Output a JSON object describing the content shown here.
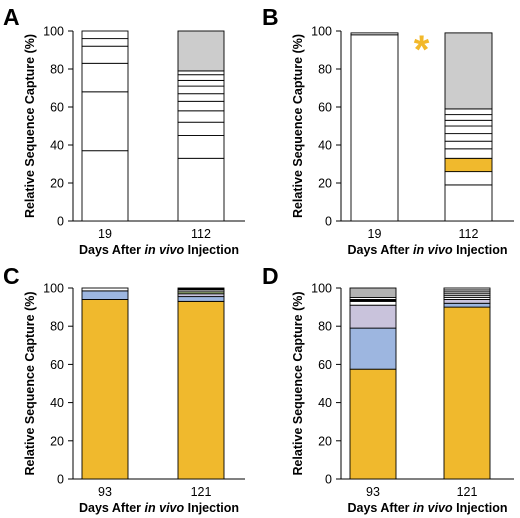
{
  "chart_data": [
    {
      "panel_letter": "A",
      "type": "bar",
      "stacked": true,
      "ylabel": "Relative Sequence Capture (%)",
      "xlabel_parts": [
        "Days After ",
        "in vivo",
        " Injection"
      ],
      "ylim": [
        0,
        100
      ],
      "yticks": [
        0,
        20,
        40,
        60,
        80,
        100
      ],
      "categories": [
        "19",
        "112"
      ],
      "stacks": [
        [
          {
            "value": 37,
            "color": "#ffffff"
          },
          {
            "value": 31,
            "color": "#ffffff"
          },
          {
            "value": 15,
            "color": "#ffffff"
          },
          {
            "value": 9,
            "color": "#ffffff"
          },
          {
            "value": 4,
            "color": "#ffffff"
          },
          {
            "value": 4,
            "color": "#ffffff"
          }
        ],
        [
          {
            "value": 33,
            "color": "#ffffff"
          },
          {
            "value": 12,
            "color": "#ffffff"
          },
          {
            "value": 7,
            "color": "#ffffff"
          },
          {
            "value": 6,
            "color": "#ffffff"
          },
          {
            "value": 5,
            "color": "#ffffff"
          },
          {
            "value": 4,
            "color": "#ffffff"
          },
          {
            "value": 4,
            "color": "#ffffff"
          },
          {
            "value": 3,
            "color": "#ffffff"
          },
          {
            "value": 3,
            "color": "#ffffff"
          },
          {
            "value": 2,
            "color": "#ffffff"
          },
          {
            "value": 21,
            "color": "#cccccc"
          }
        ]
      ]
    },
    {
      "panel_letter": "B",
      "type": "bar",
      "stacked": true,
      "ylabel": "Relative Sequence Capture (%)",
      "xlabel_parts": [
        "Days After ",
        "in vivo",
        " Injection"
      ],
      "ylim": [
        0,
        100
      ],
      "yticks": [
        0,
        20,
        40,
        60,
        80,
        100
      ],
      "categories": [
        "19",
        "112"
      ],
      "annotation": {
        "text": "*",
        "color": "#f2b82a",
        "between_categories": [
          0,
          1
        ]
      },
      "stacks": [
        [
          {
            "value": 98,
            "color": "#ffffff"
          },
          {
            "value": 1,
            "color": "#ffffff"
          }
        ],
        [
          {
            "value": 19,
            "color": "#ffffff"
          },
          {
            "value": 7,
            "color": "#ffffff"
          },
          {
            "value": 7,
            "color": "#f0b92d"
          },
          {
            "value": 5,
            "color": "#ffffff"
          },
          {
            "value": 4,
            "color": "#ffffff"
          },
          {
            "value": 4,
            "color": "#ffffff"
          },
          {
            "value": 4,
            "color": "#ffffff"
          },
          {
            "value": 3,
            "color": "#ffffff"
          },
          {
            "value": 3,
            "color": "#ffffff"
          },
          {
            "value": 3,
            "color": "#ffffff"
          },
          {
            "value": 40,
            "color": "#cccccc"
          }
        ]
      ]
    },
    {
      "panel_letter": "C",
      "type": "bar",
      "stacked": true,
      "ylabel": "Relative Sequence Capture (%)",
      "xlabel_parts": [
        "Days After ",
        "in vivo",
        " Injection"
      ],
      "ylim": [
        0,
        100
      ],
      "yticks": [
        0,
        20,
        40,
        60,
        80,
        100
      ],
      "categories": [
        "93",
        "121"
      ],
      "stacks": [
        [
          {
            "value": 94,
            "color": "#f0b92d"
          },
          {
            "value": 4.5,
            "color": "#9db6e0"
          },
          {
            "value": 1.5,
            "color": "#ffffff"
          }
        ],
        [
          {
            "value": 93,
            "color": "#f0b92d"
          },
          {
            "value": 2.5,
            "color": "#9db6e0"
          },
          {
            "value": 1.5,
            "color": "#c9c3dc"
          },
          {
            "value": 1,
            "color": "#c9e89a"
          },
          {
            "value": 1,
            "color": "#ffffff"
          },
          {
            "value": 1,
            "color": "#000000"
          }
        ]
      ]
    },
    {
      "panel_letter": "D",
      "type": "bar",
      "stacked": true,
      "ylabel": "Relative Sequence Capture (%)",
      "xlabel_parts": [
        "Days After ",
        "in vivo",
        " Injection"
      ],
      "ylim": [
        0,
        100
      ],
      "yticks": [
        0,
        20,
        40,
        60,
        80,
        100
      ],
      "categories": [
        "93",
        "121"
      ],
      "stacks": [
        [
          {
            "value": 57.5,
            "color": "#f0b92d"
          },
          {
            "value": 21.5,
            "color": "#9db6e0"
          },
          {
            "value": 12,
            "color": "#c9c3dc"
          },
          {
            "value": 2,
            "color": "#ffffff"
          },
          {
            "value": 1,
            "color": "#000000"
          },
          {
            "value": 1,
            "color": "#ffffff"
          },
          {
            "value": 5,
            "color": "#b3b3b3"
          }
        ],
        [
          {
            "value": 90,
            "color": "#f0b92d"
          },
          {
            "value": 2,
            "color": "#9db6e0"
          },
          {
            "value": 2,
            "color": "#c9c3dc"
          },
          {
            "value": 1,
            "color": "#ffffff"
          },
          {
            "value": 1,
            "color": "#ffffff"
          },
          {
            "value": 1,
            "color": "#ffffff"
          },
          {
            "value": 1,
            "color": "#ffffff"
          },
          {
            "value": 1,
            "color": "#ffffff"
          },
          {
            "value": 1,
            "color": "#ffffff"
          }
        ]
      ]
    }
  ]
}
